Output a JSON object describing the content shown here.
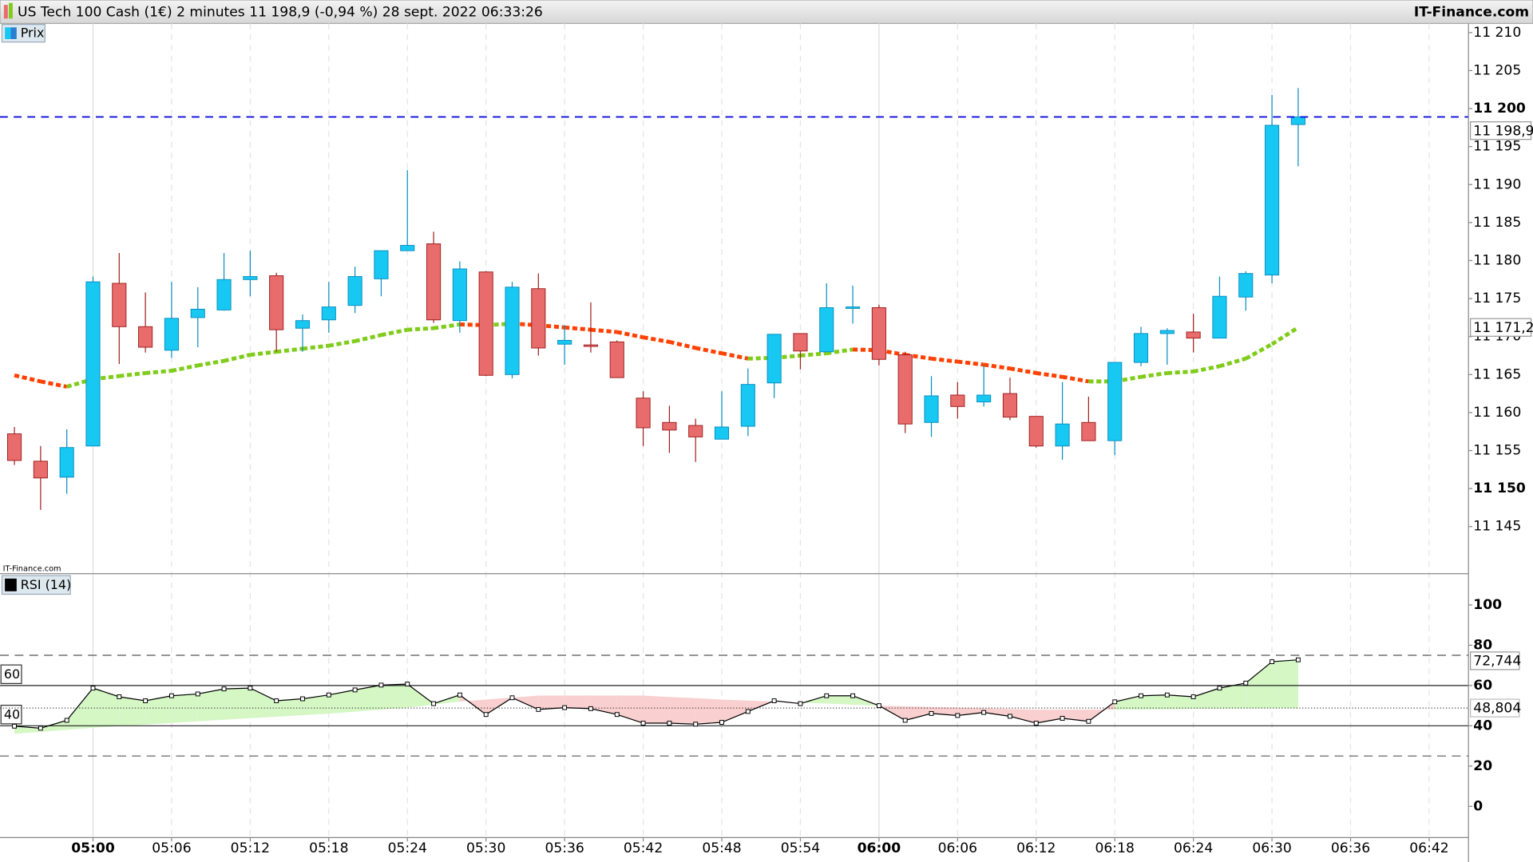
{
  "chart_data": {
    "type": "candlestick",
    "title": "US Tech 100 Cash (1€) 2 minutes 11 198,9 (-0,94 %) 28 sept. 2022 06:33:26",
    "brand": "IT-Finance.com",
    "watermark": "IT-Finance.com",
    "legend": "Prix",
    "open": [
      11157.2,
      11153.6,
      11151.5,
      11155.6,
      11177.0,
      11171.3,
      11168.2,
      11172.5,
      11173.5,
      11177.5,
      11178.0,
      11171.1,
      11172.2,
      11174.1,
      11177.6,
      11181.3,
      11182.2,
      11172.1,
      11178.5,
      11165.0,
      11176.3,
      11169.0,
      11168.9,
      11169.3,
      11161.9,
      11158.7,
      11158.3,
      11156.5,
      11158.2,
      11163.9,
      11170.4,
      11168.0,
      11173.8,
      11173.8,
      11167.6,
      11158.7,
      11162.3,
      11161.4,
      11162.5,
      11159.5,
      11155.6,
      11158.7,
      11156.3,
      11166.6,
      11170.4,
      11170.6,
      11169.8,
      11175.2,
      11178.1,
      11197.9
    ],
    "high": [
      11158.1,
      11155.6,
      11157.8,
      11177.9,
      11181.0,
      11175.8,
      11177.2,
      11176.5,
      11181.0,
      11181.3,
      11178.4,
      11172.9,
      11177.2,
      11179.2,
      11181.3,
      11191.9,
      11183.8,
      11179.9,
      11178.6,
      11177.2,
      11178.3,
      11171.5,
      11174.5,
      11169.5,
      11162.8,
      11160.9,
      11159.2,
      11162.8,
      11165.8,
      11170.3,
      11170.4,
      11177.0,
      11176.7,
      11174.2,
      11168.0,
      11164.8,
      11164.0,
      11166.2,
      11164.6,
      11159.5,
      11164.0,
      11162.1,
      11166.6,
      11171.3,
      11171.1,
      11173.0,
      11177.9,
      11178.6,
      11201.8,
      11202.7
    ],
    "low": [
      11153.1,
      11147.2,
      11149.3,
      11155.6,
      11166.4,
      11167.9,
      11167.2,
      11168.6,
      11173.4,
      11175.3,
      11168.0,
      11168.0,
      11170.5,
      11173.1,
      11175.3,
      11181.3,
      11171.8,
      11170.5,
      11164.8,
      11164.5,
      11167.5,
      11166.3,
      11167.9,
      11164.6,
      11155.6,
      11154.7,
      11153.5,
      11156.5,
      11156.9,
      11161.9,
      11165.7,
      11168.0,
      11171.7,
      11166.2,
      11157.3,
      11156.8,
      11159.2,
      11160.8,
      11159.0,
      11155.4,
      11153.8,
      11156.3,
      11154.4,
      11166.1,
      11166.3,
      11167.9,
      11169.8,
      11173.4,
      11177.0,
      11192.4
    ],
    "close": [
      11153.7,
      11151.4,
      11155.4,
      11177.2,
      11171.3,
      11168.6,
      11172.4,
      11173.6,
      11177.5,
      11177.9,
      11170.9,
      11172.1,
      11173.9,
      11177.9,
      11181.3,
      11182.0,
      11172.2,
      11178.9,
      11164.9,
      11176.5,
      11168.5,
      11169.5,
      11168.8,
      11164.6,
      11158.0,
      11157.7,
      11156.8,
      11158.1,
      11163.7,
      11170.3,
      11168.1,
      11173.8,
      11173.9,
      11167.0,
      11158.5,
      11162.2,
      11160.8,
      11162.3,
      11159.4,
      11155.6,
      11158.5,
      11156.3,
      11166.6,
      11170.4,
      11170.8,
      11169.8,
      11175.3,
      11178.3,
      11197.8,
      11198.9
    ],
    "close_label": "11 198,9",
    "up_color": "#17c8f2",
    "down_color": "#e86c6c",
    "last_line_color": "#0000dd",
    "moving_average": {
      "values": [
        11164.9,
        11164.1,
        11163.4,
        11164.4,
        11164.8,
        11165.2,
        11165.5,
        11166.2,
        11166.8,
        11167.6,
        11168.0,
        11168.4,
        11168.8,
        11169.4,
        11170.2,
        11170.9,
        11171.1,
        11171.6,
        11171.5,
        11171.7,
        11171.5,
        11171.2,
        11170.9,
        11170.6,
        11169.9,
        11169.3,
        11168.5,
        11167.8,
        11167.1,
        11167.2,
        11167.5,
        11167.8,
        11168.3,
        11168.2,
        11167.6,
        11167.1,
        11166.7,
        11166.3,
        11165.8,
        11165.2,
        11164.7,
        11164.1,
        11164.1,
        11164.7,
        11165.2,
        11165.4,
        11166.1,
        11167.1,
        11169.0,
        11171.2
      ],
      "value_label": "11 171,2",
      "up_color": "#7fcc1a",
      "down_color": "#ff4000"
    },
    "ylim": [
      11138.8,
      11211.2
    ],
    "yticks": [
      {
        "value": 11145,
        "label": "11 145"
      },
      {
        "value": 11150,
        "label": "11 150"
      },
      {
        "value": 11155,
        "label": "11 155"
      },
      {
        "value": 11160,
        "label": "11 160"
      },
      {
        "value": 11165,
        "label": "11 165"
      },
      {
        "value": 11170,
        "label": "11 170"
      },
      {
        "value": 11175,
        "label": "11 175"
      },
      {
        "value": 11180,
        "label": "11 180"
      },
      {
        "value": 11185,
        "label": "11 185"
      },
      {
        "value": 11190,
        "label": "11 190"
      },
      {
        "value": 11195,
        "label": "11 195"
      },
      {
        "value": 11200,
        "label": "11 200"
      },
      {
        "value": 11205,
        "label": "11 205"
      },
      {
        "value": 11210,
        "label": "11 210"
      }
    ],
    "xlim": [
      -0.55,
      55.5
    ],
    "xticks": [
      {
        "value": 3,
        "label": "05:00"
      },
      {
        "value": 6,
        "label": "05:06"
      },
      {
        "value": 9,
        "label": "05:12"
      },
      {
        "value": 12,
        "label": "05:18"
      },
      {
        "value": 15,
        "label": "05:24"
      },
      {
        "value": 18,
        "label": "05:30"
      },
      {
        "value": 21,
        "label": "05:36"
      },
      {
        "value": 24,
        "label": "05:42"
      },
      {
        "value": 27,
        "label": "05:48"
      },
      {
        "value": 30,
        "label": "05:54"
      },
      {
        "value": 33,
        "label": "06:00"
      },
      {
        "value": 36,
        "label": "06:06"
      },
      {
        "value": 39,
        "label": "06:12"
      },
      {
        "value": 42,
        "label": "06:18"
      },
      {
        "value": 45,
        "label": "06:24"
      },
      {
        "value": 48,
        "label": "06:30"
      },
      {
        "value": 51,
        "label": "06:36"
      },
      {
        "value": 54,
        "label": "06:42"
      }
    ],
    "rsi": {
      "legend": "RSI (14)",
      "values": [
        39.8,
        38.8,
        42.7,
        58.7,
        54.4,
        52.4,
        54.9,
        55.8,
        58.3,
        58.7,
        52.4,
        53.4,
        55.3,
        57.8,
        60.2,
        60.7,
        51.0,
        55.3,
        45.6,
        53.9,
        48.1,
        49.0,
        48.5,
        45.6,
        41.3,
        41.3,
        40.8,
        41.7,
        47.1,
        52.4,
        51.0,
        54.9,
        54.9,
        50.0,
        42.7,
        46.1,
        45.1,
        46.6,
        44.7,
        41.3,
        43.7,
        42.2,
        51.9,
        54.9,
        55.3,
        54.4,
        58.7,
        61.2,
        71.8,
        72.744
      ],
      "value_label": "72,744",
      "signal": {
        "values": [
          36,
          37,
          38,
          39,
          39.8,
          40.6,
          41.4,
          42.2,
          43,
          43.8,
          44.5,
          45.3,
          46,
          47,
          48,
          49,
          50.5,
          52,
          53,
          54,
          55,
          55,
          55,
          55,
          55,
          54.3,
          53.7,
          53,
          52.5,
          52,
          51.5,
          51,
          50.5,
          50,
          49.7,
          49.3,
          49,
          48.7,
          48.3,
          48,
          48,
          48,
          48,
          48.1,
          48.2,
          48.4,
          48.5,
          48.6,
          48.7,
          48.804
        ],
        "value_label": "48,804"
      },
      "ylim": [
        -15.5,
        115.5
      ],
      "yticks": [
        0,
        20,
        40,
        60,
        80,
        100
      ],
      "bands": [
        60,
        40
      ],
      "dashed_levels": [
        75,
        25
      ],
      "above_color": "#d4f7c4",
      "below_color": "#f9cfcf"
    }
  }
}
